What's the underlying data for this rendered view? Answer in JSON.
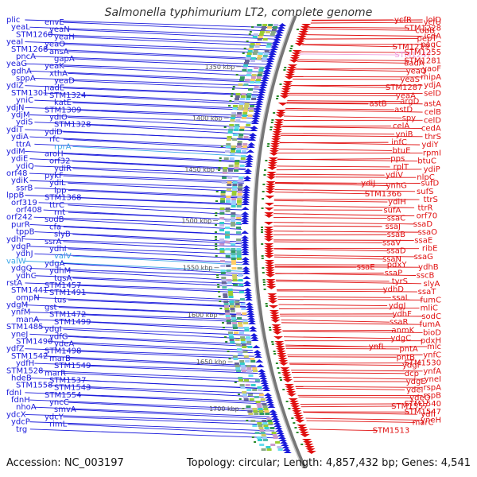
{
  "title": "Salmonella typhimurium LT2, complete genome",
  "accession_label": "Accession: NC_003197",
  "summary_label": "Topology: circular; Length: 4,857,432 bp; Genes: 4,541",
  "colors": {
    "forward": "#1a1adb",
    "reverse": "#e01010",
    "highlight_fwd": "#3aa6e8",
    "highlight_rev": "#f0a0e0",
    "ruler": "#888888",
    "tick_green": "#2a8a2a"
  },
  "ruler_ticks": [
    {
      "label": "1350 kbp",
      "pos": 0.1
    },
    {
      "label": "1400 kbp",
      "pos": 0.22
    },
    {
      "label": "1450 kbp",
      "pos": 0.34
    },
    {
      "label": "1500 kbp",
      "pos": 0.46
    },
    {
      "label": "1550 kbp",
      "pos": 0.57
    },
    {
      "label": "1600 kbp",
      "pos": 0.68
    },
    {
      "label": "1650 kbp",
      "pos": 0.79
    },
    {
      "label": "1700 kbp",
      "pos": 0.9
    }
  ],
  "left_labels": [
    {
      "text": "plic",
      "hl": false
    },
    {
      "text": "envE",
      "hl": false
    },
    {
      "text": "yeaL",
      "hl": false
    },
    {
      "text": "yeaN",
      "hl": false
    },
    {
      "text": "STM1260",
      "hl": false
    },
    {
      "text": "yeaH",
      "hl": false
    },
    {
      "text": "yeaI",
      "hl": false
    },
    {
      "text": "yeaO",
      "hl": false
    },
    {
      "text": "STM1268",
      "hl": false
    },
    {
      "text": "ansA",
      "hl": false
    },
    {
      "text": "pncA",
      "hl": false
    },
    {
      "text": "gapA",
      "hl": false
    },
    {
      "text": "yeaG",
      "hl": false
    },
    {
      "text": "yeaK",
      "hl": false
    },
    {
      "text": "gdhA",
      "hl": false
    },
    {
      "text": "xthA",
      "hl": false
    },
    {
      "text": "sppA",
      "hl": false
    },
    {
      "text": "yeaD",
      "hl": false
    },
    {
      "text": "ydiZ",
      "hl": false
    },
    {
      "text": "nadE",
      "hl": false
    },
    {
      "text": "STM1301",
      "hl": false
    },
    {
      "text": "STM1324",
      "hl": false
    },
    {
      "text": "yniC",
      "hl": false
    },
    {
      "text": "katE",
      "hl": false
    },
    {
      "text": "ydjN",
      "hl": false
    },
    {
      "text": "STM1309",
      "hl": false
    },
    {
      "text": "ydjM",
      "hl": false
    },
    {
      "text": "ydiO",
      "hl": false
    },
    {
      "text": "ydiS",
      "hl": false
    },
    {
      "text": "STM1328",
      "hl": false
    },
    {
      "text": "ydiT",
      "hl": false
    },
    {
      "text": "ydiD",
      "hl": false
    },
    {
      "text": "ydiA",
      "hl": false
    },
    {
      "text": "rfc",
      "hl": false
    },
    {
      "text": "ttrA",
      "hl": false
    },
    {
      "text": "rprA",
      "hl": true
    },
    {
      "text": "ydiM",
      "hl": false
    },
    {
      "text": "aroH",
      "hl": false
    },
    {
      "text": "ydiE",
      "hl": false
    },
    {
      "text": "orf32",
      "hl": false
    },
    {
      "text": "ydiQ",
      "hl": false
    },
    {
      "text": "ydiR",
      "hl": false
    },
    {
      "text": "orf48",
      "hl": false
    },
    {
      "text": "pykF",
      "hl": false
    },
    {
      "text": "ydiK",
      "hl": false
    },
    {
      "text": "ydiL",
      "hl": false
    },
    {
      "text": "ssrB",
      "hl": false
    },
    {
      "text": "lpp",
      "hl": false
    },
    {
      "text": "lppB",
      "hl": false
    },
    {
      "text": "STM1368",
      "hl": false
    },
    {
      "text": "orf319",
      "hl": false
    },
    {
      "text": "ttrC",
      "hl": false
    },
    {
      "text": "orf408",
      "hl": false
    },
    {
      "text": "rnt",
      "hl": false
    },
    {
      "text": "orf242",
      "hl": false
    },
    {
      "text": "sodB",
      "hl": false
    },
    {
      "text": "purR",
      "hl": false
    },
    {
      "text": "cfa",
      "hl": false
    },
    {
      "text": "tppB",
      "hl": false
    },
    {
      "text": "slyB",
      "hl": false
    },
    {
      "text": "ydhF",
      "hl": false
    },
    {
      "text": "ssrA",
      "hl": false
    },
    {
      "text": "ydgP",
      "hl": false
    },
    {
      "text": "ydhI",
      "hl": false
    },
    {
      "text": "ydhJ",
      "hl": false
    },
    {
      "text": "valV",
      "hl": true
    },
    {
      "text": "valW",
      "hl": true
    },
    {
      "text": "ydgA",
      "hl": false
    },
    {
      "text": "ydgQ",
      "hl": false
    },
    {
      "text": "ydhM",
      "hl": false
    },
    {
      "text": "ydhC",
      "hl": false
    },
    {
      "text": "tqsA",
      "hl": false
    },
    {
      "text": "rstA",
      "hl": false
    },
    {
      "text": "STM1457",
      "hl": false
    },
    {
      "text": "STM1441",
      "hl": false
    },
    {
      "text": "STM1491",
      "hl": false
    },
    {
      "text": "ompN",
      "hl": false
    },
    {
      "text": "tus",
      "hl": false
    },
    {
      "text": "ydgM",
      "hl": false
    },
    {
      "text": "gst",
      "hl": false
    },
    {
      "text": "ynfM",
      "hl": false
    },
    {
      "text": "STM1472",
      "hl": false
    },
    {
      "text": "manA",
      "hl": false
    },
    {
      "text": "STM1499",
      "hl": false
    },
    {
      "text": "STM1485",
      "hl": false
    },
    {
      "text": "ydgI",
      "hl": false
    },
    {
      "text": "yneJ",
      "hl": false
    },
    {
      "text": "ydfG",
      "hl": false
    },
    {
      "text": "STM1490",
      "hl": false
    },
    {
      "text": "ydeA",
      "hl": false
    },
    {
      "text": "ydfZ",
      "hl": false
    },
    {
      "text": "STM1498",
      "hl": false
    },
    {
      "text": "STM1542",
      "hl": false
    },
    {
      "text": "marB",
      "hl": false
    },
    {
      "text": "ydfH",
      "hl": false
    },
    {
      "text": "STM1549",
      "hl": false
    },
    {
      "text": "STM1528",
      "hl": false
    },
    {
      "text": "marR",
      "hl": false
    },
    {
      "text": "hdeB",
      "hl": false
    },
    {
      "text": "STM1537",
      "hl": false
    },
    {
      "text": "STM1558",
      "hl": false
    },
    {
      "text": "STM1543",
      "hl": false
    },
    {
      "text": "fdnI",
      "hl": false
    },
    {
      "text": "STM1554",
      "hl": false
    },
    {
      "text": "fdnH",
      "hl": false
    },
    {
      "text": "yncC",
      "hl": false
    },
    {
      "text": "nhoA",
      "hl": false
    },
    {
      "text": "smvA",
      "hl": false
    },
    {
      "text": "ydcX",
      "hl": false
    },
    {
      "text": "ydcY",
      "hl": false
    },
    {
      "text": "ydcP",
      "hl": false
    },
    {
      "text": "rimL",
      "hl": false
    },
    {
      "text": "trg",
      "hl": false
    }
  ],
  "right_labels": [
    {
      "text": "ycfR",
      "hl": false
    },
    {
      "text": "ycfU",
      "hl": false
    },
    {
      "text": "lolD",
      "hl": false
    },
    {
      "text": "cobB",
      "hl": false
    },
    {
      "text": "STM1228",
      "hl": false
    },
    {
      "text": "pepT",
      "hl": false
    },
    {
      "text": "icdA",
      "hl": false
    },
    {
      "text": "STM1239",
      "hl": false
    },
    {
      "text": "pagC",
      "hl": false
    },
    {
      "text": "STM1247",
      "hl": true
    },
    {
      "text": "STM1255",
      "hl": false
    },
    {
      "text": "aadA",
      "hl": false
    },
    {
      "text": "STM1281",
      "hl": false
    },
    {
      "text": "yeaQ",
      "hl": false
    },
    {
      "text": "yaoF",
      "hl": false
    },
    {
      "text": "yeaS",
      "hl": false
    },
    {
      "text": "mipA",
      "hl": false
    },
    {
      "text": "STM1287",
      "hl": false
    },
    {
      "text": "ydjA",
      "hl": false
    },
    {
      "text": "yeaA",
      "hl": false
    },
    {
      "text": "selD",
      "hl": false
    },
    {
      "text": "astB",
      "hl": false
    },
    {
      "text": "argD",
      "hl": false
    },
    {
      "text": "astA",
      "hl": false
    },
    {
      "text": "astD",
      "hl": false
    },
    {
      "text": "celB",
      "hl": false
    },
    {
      "text": "spy",
      "hl": false
    },
    {
      "text": "celD",
      "hl": false
    },
    {
      "text": "celA",
      "hl": false
    },
    {
      "text": "cedA",
      "hl": false
    },
    {
      "text": "yniB",
      "hl": false
    },
    {
      "text": "thrS",
      "hl": false
    },
    {
      "text": "infC",
      "hl": false
    },
    {
      "text": "ydiY",
      "hl": false
    },
    {
      "text": "btuE",
      "hl": false
    },
    {
      "text": "rpmI",
      "hl": false
    },
    {
      "text": "pps",
      "hl": false
    },
    {
      "text": "btuC",
      "hl": false
    },
    {
      "text": "rplT",
      "hl": false
    },
    {
      "text": "ydiP",
      "hl": false
    },
    {
      "text": "ydiV",
      "hl": false
    },
    {
      "text": "nlpC",
      "hl": false
    },
    {
      "text": "ydiJ",
      "hl": false
    },
    {
      "text": "ynhG",
      "hl": false
    },
    {
      "text": "sufD",
      "hl": false
    },
    {
      "text": "STM1366",
      "hl": false
    },
    {
      "text": "sufS",
      "hl": false
    },
    {
      "text": "ydiH",
      "hl": false
    },
    {
      "text": "ttrS",
      "hl": false
    },
    {
      "text": "sufA",
      "hl": false
    },
    {
      "text": "ttrR",
      "hl": false
    },
    {
      "text": "ssaC",
      "hl": false
    },
    {
      "text": "orf70",
      "hl": false
    },
    {
      "text": "ssaJ",
      "hl": false
    },
    {
      "text": "ssaD",
      "hl": false
    },
    {
      "text": "ssaB",
      "hl": false
    },
    {
      "text": "ssaO",
      "hl": false
    },
    {
      "text": "ssaV",
      "hl": false
    },
    {
      "text": "ssaE",
      "hl": false
    },
    {
      "text": "ssaD",
      "hl": false
    },
    {
      "text": "ribE",
      "hl": false
    },
    {
      "text": "ssaN",
      "hl": false
    },
    {
      "text": "ssaG",
      "hl": false
    },
    {
      "text": "ssaE",
      "hl": false
    },
    {
      "text": "pdxY",
      "hl": false
    },
    {
      "text": "ydhB",
      "hl": false
    },
    {
      "text": "ssaP",
      "hl": false
    },
    {
      "text": "sscB",
      "hl": false
    },
    {
      "text": "tyrS",
      "hl": false
    },
    {
      "text": "slyA",
      "hl": false
    },
    {
      "text": "ydhD",
      "hl": false
    },
    {
      "text": "ssaT",
      "hl": false
    },
    {
      "text": "ssaL",
      "hl": false
    },
    {
      "text": "fumC",
      "hl": false
    },
    {
      "text": "ydgJ",
      "hl": false
    },
    {
      "text": "mliC",
      "hl": false
    },
    {
      "text": "ydhF",
      "hl": false
    },
    {
      "text": "sodC",
      "hl": false
    },
    {
      "text": "ssaR",
      "hl": false
    },
    {
      "text": "fumA",
      "hl": false
    },
    {
      "text": "anmK",
      "hl": false
    },
    {
      "text": "bioD",
      "hl": false
    },
    {
      "text": "ydgC",
      "hl": false
    },
    {
      "text": "pdxH",
      "hl": false
    },
    {
      "text": "ynfL",
      "hl": false
    },
    {
      "text": "pntA",
      "hl": false
    },
    {
      "text": "mlc",
      "hl": false
    },
    {
      "text": "pntB",
      "hl": false
    },
    {
      "text": "ynfC",
      "hl": false
    },
    {
      "text": "ydgF",
      "hl": false
    },
    {
      "text": "STM1530",
      "hl": false
    },
    {
      "text": "dcp",
      "hl": false
    },
    {
      "text": "ynfA",
      "hl": false
    },
    {
      "text": "ydgE",
      "hl": false
    },
    {
      "text": "yneI",
      "hl": false
    },
    {
      "text": "ydeI",
      "hl": false
    },
    {
      "text": "rspA",
      "hl": false
    },
    {
      "text": "ydeO",
      "hl": false
    },
    {
      "text": "rspB",
      "hl": false
    },
    {
      "text": "STM1557",
      "hl": false
    },
    {
      "text": "STM1540",
      "hl": false
    },
    {
      "text": "ydfI",
      "hl": false
    },
    {
      "text": "STM1547",
      "hl": false
    },
    {
      "text": "marC",
      "hl": false
    },
    {
      "text": "yneH",
      "hl": false
    },
    {
      "text": "STM1513",
      "hl": false
    }
  ]
}
